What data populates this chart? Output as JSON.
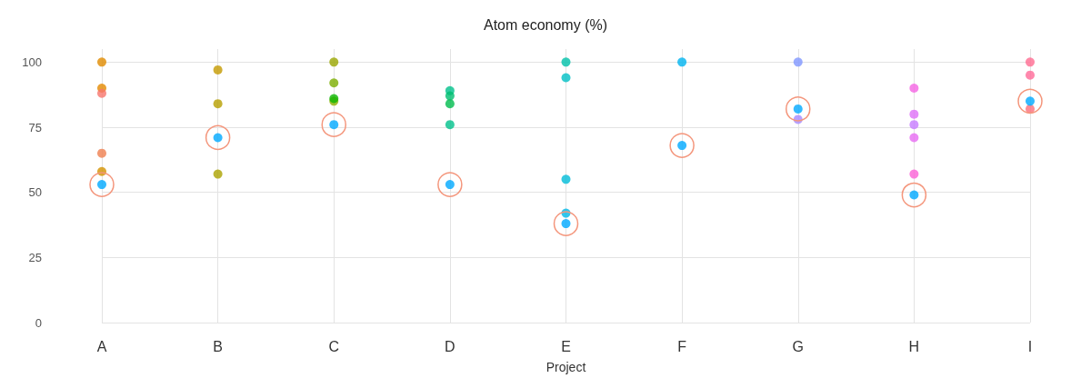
{
  "chart_data": {
    "type": "scatter",
    "title": "Atom economy (%)",
    "xlabel": "Project",
    "categories": [
      "A",
      "B",
      "C",
      "D",
      "E",
      "F",
      "G",
      "H",
      "I"
    ],
    "ylim": [
      0,
      105
    ],
    "yticks": [
      0,
      25,
      50,
      75,
      100
    ],
    "grid": true,
    "marker": "circle",
    "series": [
      {
        "x": [
          "A",
          "A",
          "A",
          "A",
          "A"
        ],
        "values": [
          100,
          90,
          88,
          65,
          58
        ],
        "colors": [
          "#e08b00",
          "#e38900",
          "#f8766d",
          "#ef7f50",
          "#d39200"
        ]
      },
      {
        "x": [
          "B",
          "B",
          "B"
        ],
        "values": [
          97,
          84,
          57
        ],
        "colors": [
          "#c49a00",
          "#b79f00",
          "#aba300"
        ]
      },
      {
        "x": [
          "C",
          "C",
          "C",
          "C"
        ],
        "values": [
          100,
          92,
          85,
          86
        ],
        "colors": [
          "#9aa600",
          "#7cae00",
          "#8ab000",
          "#0cb702"
        ]
      },
      {
        "x": [
          "D",
          "D",
          "D",
          "D"
        ],
        "values": [
          89,
          87,
          84,
          76
        ],
        "colors": [
          "#00c08b",
          "#00be70",
          "#00bb4e",
          "#00c08b"
        ]
      },
      {
        "x": [
          "E",
          "E",
          "E",
          "E"
        ],
        "values": [
          100,
          94,
          55,
          42
        ],
        "colors": [
          "#00c1a9",
          "#00bfc4",
          "#00bcd8",
          "#00b8e7"
        ]
      },
      {
        "x": [
          "F"
        ],
        "values": [
          100
        ],
        "colors": [
          "#00b4f0"
        ]
      },
      {
        "x": [
          "G",
          "G"
        ],
        "values": [
          100,
          78
        ],
        "colors": [
          "#7f96ff",
          "#a58aff"
        ]
      },
      {
        "x": [
          "H",
          "H",
          "H",
          "H",
          "H"
        ],
        "values": [
          90,
          80,
          76,
          71,
          57
        ],
        "colors": [
          "#f564e3",
          "#df70f8",
          "#c77cff",
          "#e76bf3",
          "#fb61d7"
        ]
      },
      {
        "x": [
          "I",
          "I",
          "I"
        ],
        "values": [
          100,
          95,
          82
        ],
        "colors": [
          "#ff6c91",
          "#ff6a98",
          "#fd6f7c"
        ]
      },
      {
        "x": [
          "A",
          "B",
          "C",
          "D",
          "E",
          "F",
          "G",
          "H",
          "I"
        ],
        "values": [
          53,
          71,
          76,
          53,
          38,
          68,
          82,
          49,
          85
        ],
        "color": "#00a9ff"
      }
    ]
  }
}
